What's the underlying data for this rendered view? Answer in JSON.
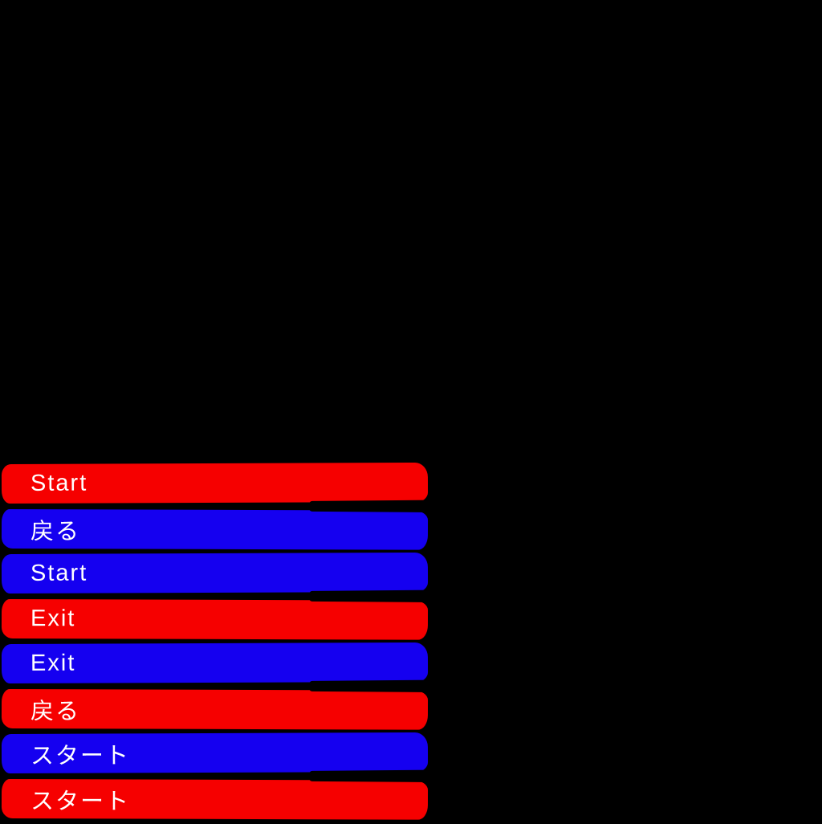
{
  "screen": {
    "background": "#000000"
  },
  "colors": {
    "red": "#f60000",
    "blue": "#1500f0",
    "text": "#ffffff"
  },
  "menu": {
    "buttons": [
      {
        "label": "Start",
        "color": "red"
      },
      {
        "label": "戻る",
        "color": "blue"
      },
      {
        "label": "Start",
        "color": "blue"
      },
      {
        "label": "Exit",
        "color": "red"
      },
      {
        "label": "Exit",
        "color": "blue"
      },
      {
        "label": "戻る",
        "color": "red"
      },
      {
        "label": "スタート",
        "color": "blue"
      },
      {
        "label": "スタート",
        "color": "red"
      }
    ]
  }
}
